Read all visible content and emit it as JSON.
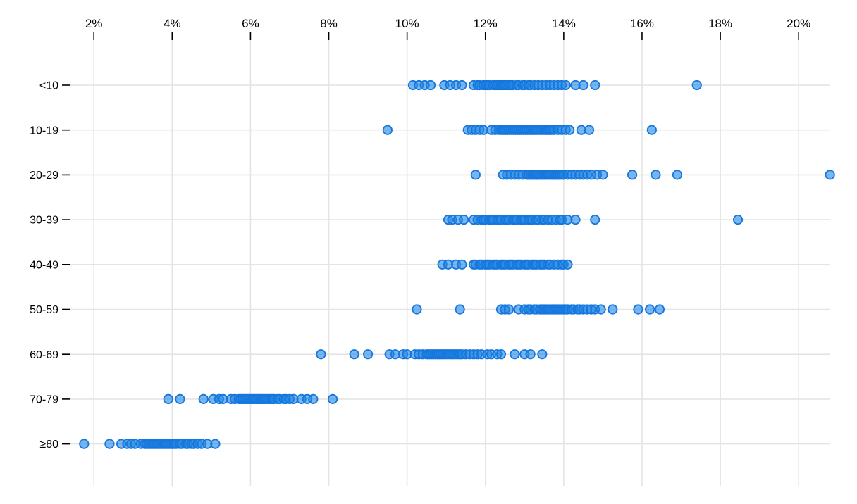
{
  "chart_data": {
    "type": "scatter",
    "variant": "strip-plot",
    "title": "",
    "x_axis": {
      "position": "top",
      "ticks": [
        2,
        4,
        6,
        8,
        10,
        12,
        14,
        16,
        18,
        20
      ],
      "tick_suffix": "%",
      "domain": [
        1.55,
        20.85
      ],
      "grid": true
    },
    "y_axis": {
      "position": "left",
      "categories": [
        "<10",
        "10-19",
        "20-29",
        "30-39",
        "40-49",
        "50-59",
        "60-69",
        "70-79",
        "≥80"
      ]
    },
    "series": [
      {
        "category": "<10",
        "values": [
          10.15,
          10.3,
          10.45,
          10.6,
          10.95,
          11.1,
          11.25,
          11.4,
          11.7,
          11.8,
          11.85,
          11.95,
          12.0,
          12.05,
          12.1,
          12.2,
          12.25,
          12.3,
          12.35,
          12.4,
          12.45,
          12.5,
          12.55,
          12.6,
          12.65,
          12.7,
          12.8,
          12.85,
          12.95,
          13.0,
          13.1,
          13.15,
          13.25,
          13.35,
          13.45,
          13.55,
          13.65,
          13.75,
          13.85,
          13.95,
          14.05,
          14.3,
          14.5,
          14.8,
          17.4
        ]
      },
      {
        "category": "10-19",
        "values": [
          9.5,
          11.55,
          11.65,
          11.75,
          11.85,
          11.95,
          12.15,
          12.25,
          12.35,
          12.4,
          12.45,
          12.5,
          12.55,
          12.6,
          12.65,
          12.7,
          12.75,
          12.8,
          12.85,
          12.9,
          12.95,
          13.0,
          13.05,
          13.1,
          13.15,
          13.2,
          13.25,
          13.3,
          13.35,
          13.4,
          13.45,
          13.5,
          13.55,
          13.6,
          13.65,
          13.7,
          13.75,
          13.85,
          13.95,
          14.05,
          14.15,
          14.45,
          14.65,
          16.25
        ]
      },
      {
        "category": "20-29",
        "values": [
          11.75,
          12.45,
          12.55,
          12.65,
          12.75,
          12.85,
          12.95,
          13.05,
          13.1,
          13.15,
          13.2,
          13.25,
          13.3,
          13.35,
          13.4,
          13.45,
          13.5,
          13.55,
          13.6,
          13.65,
          13.7,
          13.75,
          13.8,
          13.85,
          13.9,
          13.95,
          14.0,
          14.1,
          14.2,
          14.3,
          14.4,
          14.5,
          14.6,
          14.7,
          14.85,
          15.0,
          15.75,
          16.35,
          16.9,
          20.8
        ]
      },
      {
        "category": "30-39",
        "values": [
          11.05,
          11.15,
          11.3,
          11.45,
          11.7,
          11.8,
          11.9,
          11.95,
          12.0,
          12.1,
          12.15,
          12.2,
          12.3,
          12.35,
          12.4,
          12.5,
          12.55,
          12.6,
          12.7,
          12.75,
          12.8,
          12.9,
          12.95,
          13.0,
          13.1,
          13.15,
          13.2,
          13.3,
          13.35,
          13.45,
          13.5,
          13.6,
          13.7,
          13.8,
          13.9,
          13.95,
          14.1,
          14.3,
          14.8,
          18.45
        ]
      },
      {
        "category": "40-49",
        "values": [
          10.9,
          11.05,
          11.25,
          11.4,
          11.7,
          11.75,
          11.85,
          11.9,
          12.0,
          12.05,
          12.1,
          12.2,
          12.25,
          12.3,
          12.4,
          12.45,
          12.5,
          12.6,
          12.65,
          12.7,
          12.8,
          12.85,
          12.9,
          13.0,
          13.05,
          13.1,
          13.2,
          13.25,
          13.3,
          13.4,
          13.45,
          13.5,
          13.6,
          13.65,
          13.75,
          13.85,
          13.95,
          14.0,
          14.1
        ]
      },
      {
        "category": "50-59",
        "values": [
          10.25,
          11.35,
          12.4,
          12.5,
          12.6,
          12.85,
          13.0,
          13.1,
          13.15,
          13.25,
          13.3,
          13.4,
          13.45,
          13.5,
          13.55,
          13.6,
          13.65,
          13.7,
          13.75,
          13.8,
          13.85,
          13.9,
          13.95,
          14.0,
          14.05,
          14.1,
          14.2,
          14.25,
          14.35,
          14.4,
          14.5,
          14.6,
          14.7,
          14.8,
          14.95,
          15.25,
          15.9,
          16.2,
          16.45
        ]
      },
      {
        "category": "60-69",
        "values": [
          7.8,
          8.65,
          9.0,
          9.55,
          9.7,
          9.9,
          10.0,
          10.2,
          10.3,
          10.4,
          10.5,
          10.55,
          10.6,
          10.65,
          10.7,
          10.75,
          10.8,
          10.85,
          10.9,
          10.95,
          11.0,
          11.05,
          11.1,
          11.15,
          11.2,
          11.25,
          11.3,
          11.35,
          11.4,
          11.5,
          11.6,
          11.7,
          11.8,
          11.9,
          12.05,
          12.15,
          12.3,
          12.4,
          12.75,
          13.0,
          13.15,
          13.45
        ]
      },
      {
        "category": "70-79",
        "values": [
          3.9,
          4.2,
          4.8,
          5.05,
          5.2,
          5.3,
          5.5,
          5.6,
          5.7,
          5.75,
          5.8,
          5.85,
          5.9,
          5.95,
          6.0,
          6.05,
          6.1,
          6.15,
          6.2,
          6.25,
          6.3,
          6.35,
          6.4,
          6.45,
          6.5,
          6.55,
          6.6,
          6.7,
          6.75,
          6.85,
          6.9,
          7.0,
          7.1,
          7.3,
          7.45,
          7.6,
          8.1
        ]
      },
      {
        "category": "≥80",
        "values": [
          1.75,
          2.4,
          2.7,
          2.85,
          2.95,
          3.05,
          3.2,
          3.3,
          3.35,
          3.4,
          3.45,
          3.5,
          3.55,
          3.6,
          3.65,
          3.7,
          3.75,
          3.8,
          3.85,
          3.9,
          3.95,
          4.0,
          4.05,
          4.1,
          4.2,
          4.25,
          4.35,
          4.4,
          4.5,
          4.55,
          4.65,
          4.75,
          4.9,
          5.1
        ]
      }
    ],
    "style": {
      "dot_fill": "#1e87e5",
      "dot_fill_opacity": 0.6,
      "dot_stroke": "#1676dd",
      "grid_color": "#e4e4e4",
      "row_line_color": "#e4e4e4",
      "tick_color": "#000000",
      "label_color": "#000000",
      "background": "#ffffff"
    }
  }
}
